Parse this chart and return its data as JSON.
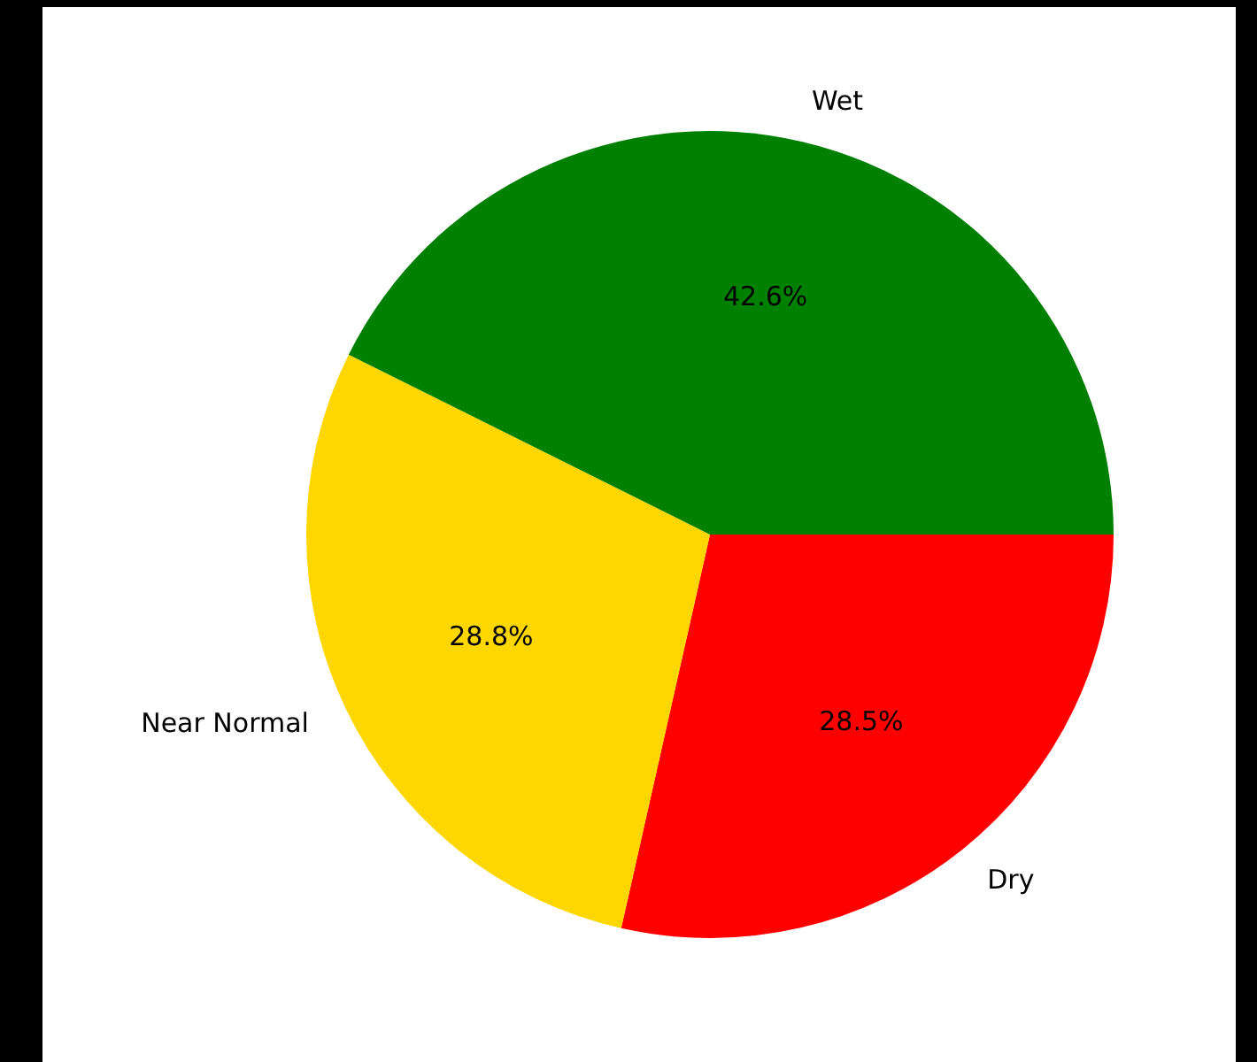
{
  "chart_data": {
    "type": "pie",
    "categories": [
      "Wet",
      "Near Normal",
      "Dry"
    ],
    "values": [
      42.6,
      28.8,
      28.5
    ],
    "colors": [
      "#008000",
      "#ffd700",
      "#ff0000"
    ],
    "value_labels": [
      "42.6%",
      "28.8%",
      "28.5%"
    ]
  }
}
